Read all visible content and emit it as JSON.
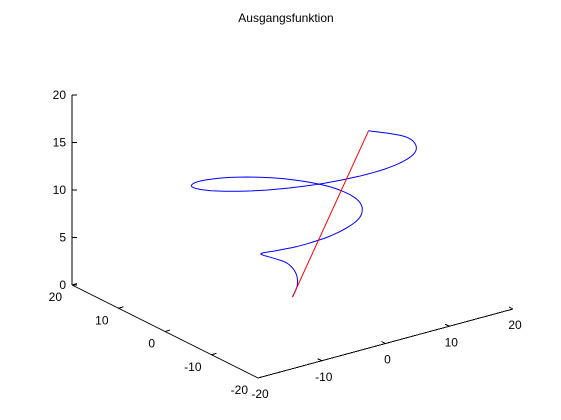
{
  "chart_data": {
    "type": "line",
    "title": "Ausgangsfunktion",
    "xlabel": "",
    "ylabel": "",
    "zlabel": "",
    "xlim": [
      -20,
      20
    ],
    "ylim": [
      -20,
      20
    ],
    "zlim": [
      0,
      20
    ],
    "grid": false,
    "x_ticks": [
      "-20",
      "-10",
      "0",
      "10",
      "20"
    ],
    "y_ticks": [
      "-20",
      "-10",
      "0",
      "10",
      "20"
    ],
    "z_ticks": [
      "0",
      "5",
      "10",
      "15",
      "20"
    ],
    "series": [
      {
        "color": "#0000ff",
        "description": "helix spiral, radius grows with height",
        "x": [
          0,
          1.1,
          1.7,
          1.1,
          -0.8,
          -3.0,
          -4.4,
          -4.0,
          -1.4,
          3.0,
          7.2,
          9.1,
          7.7,
          3.3,
          -2.7,
          -8.4,
          -11.8,
          -11.6,
          -7.4,
          -0.6,
          6.8,
          12.5,
          14.6,
          12.6
        ],
        "y": [
          0,
          0.5,
          1.6,
          2.6,
          3.0,
          2.3,
          0.5,
          -2.0,
          -4.3,
          -5.4,
          -4.6,
          -1.7,
          2.4,
          6.3,
          8.6,
          8.3,
          5.4,
          0.7,
          -4.5,
          -8.7,
          -10.5,
          -9.1,
          -4.9,
          0.9
        ],
        "z": [
          0,
          0.9,
          1.8,
          2.7,
          3.5,
          4.4,
          5.3,
          6.1,
          6.8,
          7.5,
          8.2,
          8.9,
          9.6,
          10.3,
          11.0,
          11.7,
          12.4,
          13.1,
          13.7,
          14.3,
          14.8,
          15.1,
          15.3,
          15.0
        ]
      },
      {
        "color": "#ff0000",
        "description": "straight line from origin to spiral end",
        "x": [
          0,
          12.6
        ],
        "y": [
          0,
          0.9
        ],
        "z": [
          0,
          15.0
        ]
      }
    ]
  }
}
